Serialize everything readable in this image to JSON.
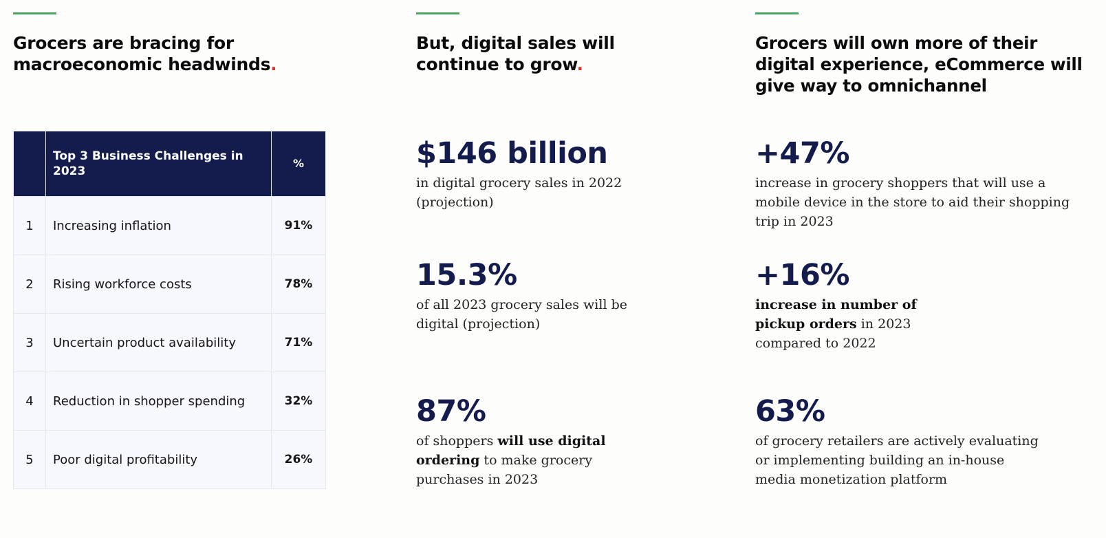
{
  "columns": [
    {
      "heading": "Grocers are bracing for macroeconomic headwinds",
      "heading_dot": ".",
      "table": {
        "header": {
          "rank": "",
          "challenge": "Top 3 Business Challenges in 2023",
          "percent": "%"
        },
        "rows": [
          {
            "rank": "1",
            "challenge": "Increasing inflation",
            "percent": "91%"
          },
          {
            "rank": "2",
            "challenge": "Rising workforce costs",
            "percent": "78%"
          },
          {
            "rank": "3",
            "challenge": "Uncertain product availability",
            "percent": "71%"
          },
          {
            "rank": "4",
            "challenge": "Reduction in shopper spending",
            "percent": "32%"
          },
          {
            "rank": "5",
            "challenge": "Poor digital profitability",
            "percent": "26%"
          }
        ]
      }
    },
    {
      "heading": "But, digital sales will continue to grow",
      "heading_dot": ".",
      "stats": [
        {
          "value": "$146 billion",
          "desc_pre": "in digital grocery sales in 2022 (projection)",
          "desc_bold": "",
          "desc_post": ""
        },
        {
          "value": "15.3%",
          "desc_pre": "of all 2023 grocery sales will be digital (projection)",
          "desc_bold": "",
          "desc_post": ""
        },
        {
          "value": "87%",
          "desc_pre": "of shoppers ",
          "desc_bold": "will use digital ordering",
          "desc_post": " to make grocery purchases in 2023"
        }
      ]
    },
    {
      "heading": "Grocers will own more of their digital experience,  eCommerce will give way to omnichannel",
      "stats": [
        {
          "value": "+47%",
          "desc_pre": "increase in grocery shoppers that will use a mobile device in the store to aid their shopping trip in 2023",
          "desc_bold": "",
          "desc_post": ""
        },
        {
          "value": "+16%",
          "desc_pre": "",
          "desc_bold": "increase in number of pickup orders",
          "desc_post": " in 2023 compared to 2022"
        },
        {
          "value": "63%",
          "desc_pre": "of grocery retailers are actively evaluating or implementing building an in-house media monetization platform",
          "desc_bold": "",
          "desc_post": ""
        }
      ]
    }
  ]
}
